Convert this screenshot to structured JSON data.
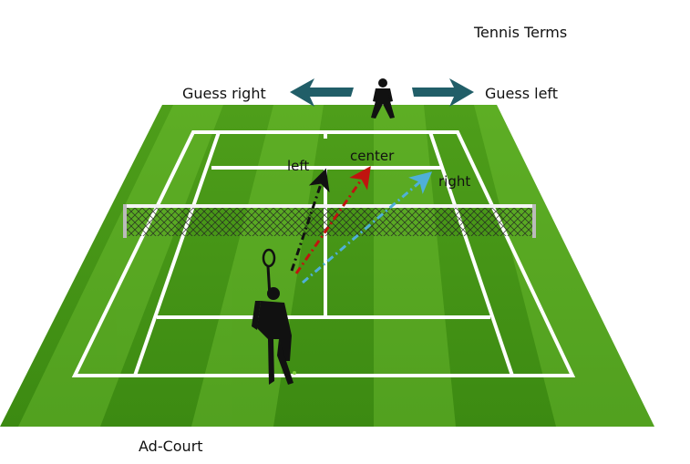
{
  "header": {
    "title": "Tennis Terms"
  },
  "receiver": {
    "guess_right_label": "Guess right",
    "guess_left_label": "Guess left"
  },
  "serve_directions": {
    "left_label": "left",
    "center_label": "center",
    "right_label": "right"
  },
  "footer": {
    "court_side_label": "Ad-Court"
  },
  "colors": {
    "grass_dark": "#3f8e12",
    "grass_light": "#5fb322",
    "lines": "#ffffff",
    "arrow_guess": "#215e68",
    "serve_left": "#111111",
    "serve_center": "#c0140f",
    "serve_right": "#4fb0d8"
  }
}
